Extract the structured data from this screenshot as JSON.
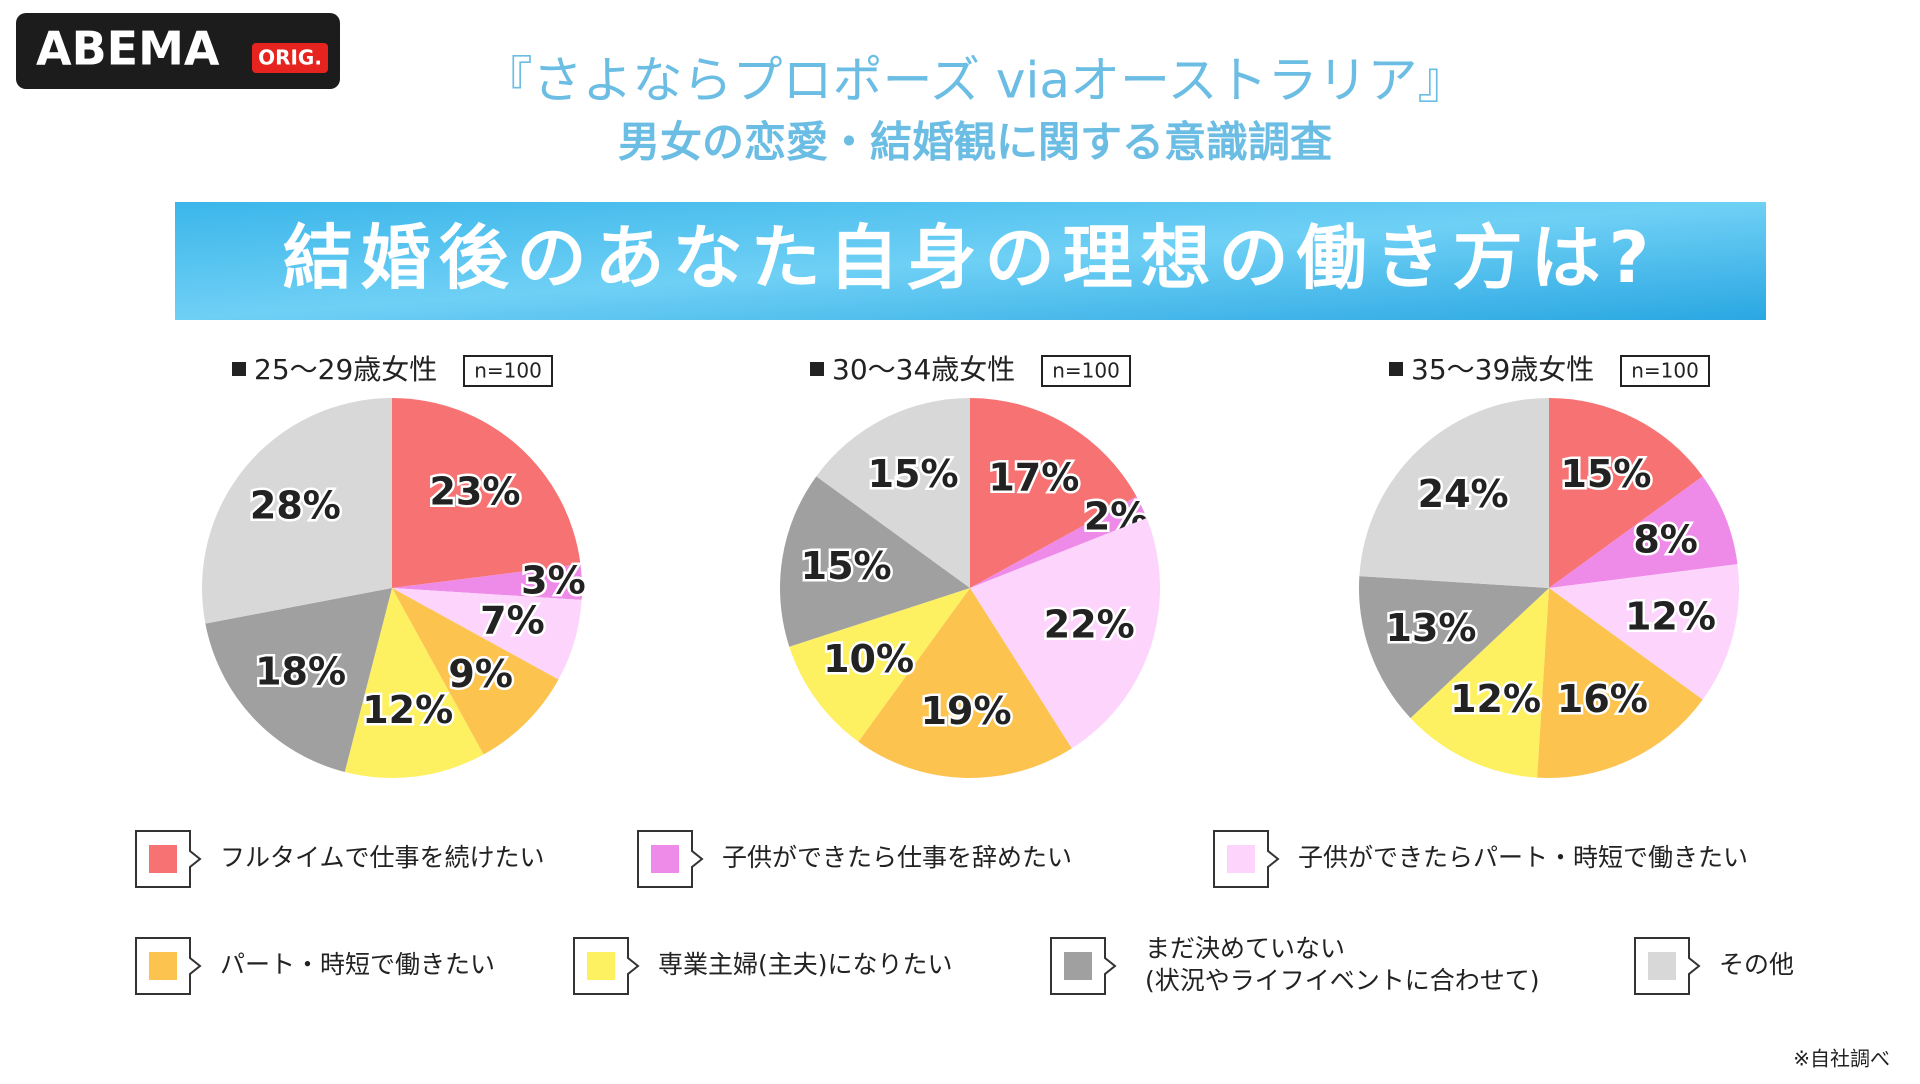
{
  "header": {
    "logo": "ABEMA",
    "logo_badge": "ORIG.",
    "title": "『さよならプロポーズ viaオーストラリア』",
    "subtitle": "男女の恋愛・結婚観に関する意識調査",
    "question": "結婚後のあなた自身の理想の働き方は?"
  },
  "legend": [
    {
      "label": "フルタイムで仕事を続けたい",
      "color": "#f77272"
    },
    {
      "label": "子供ができたら仕事を辞めたい",
      "color": "#ee8ae8"
    },
    {
      "label": "子供ができたらパート・時短で働きたい",
      "color": "#fdd4fb"
    },
    {
      "label": "パート・時短で働きたい",
      "color": "#fcc44f"
    },
    {
      "label": "専業主婦(主夫)になりたい",
      "color": "#fdf061"
    },
    {
      "label": [
        "まだ決めていない",
        "(状況やライフイベントに合わせて)"
      ],
      "color": "#a0a0a0"
    },
    {
      "label": "その他",
      "color": "#d8d8d8"
    }
  ],
  "chart_data": [
    {
      "type": "pie",
      "title": "25～29歳女性",
      "n": "n=100",
      "values": [
        23,
        3,
        7,
        9,
        12,
        18,
        28
      ],
      "value_labels": [
        "23%",
        "3%",
        "7%",
        "9%",
        "12%",
        "18%",
        "28%"
      ]
    },
    {
      "type": "pie",
      "title": "30～34歳女性",
      "n": "n=100",
      "values": [
        17,
        2,
        22,
        19,
        10,
        15,
        15
      ],
      "value_labels": [
        "17%",
        "2%",
        "22%",
        "19%",
        "10%",
        "15%",
        "15%"
      ]
    },
    {
      "type": "pie",
      "title": "35～39歳女性",
      "n": "n=100",
      "values": [
        15,
        8,
        12,
        16,
        12,
        13,
        24
      ],
      "value_labels": [
        "15%",
        "8%",
        "12%",
        "16%",
        "12%",
        "13%",
        "24%"
      ]
    }
  ],
  "footnote": "※自社調べ"
}
